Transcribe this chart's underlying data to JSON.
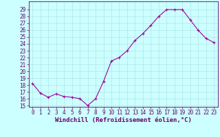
{
  "x": [
    0,
    1,
    2,
    3,
    4,
    5,
    6,
    7,
    8,
    9,
    10,
    11,
    12,
    13,
    14,
    15,
    16,
    17,
    18,
    19,
    20,
    21,
    22,
    23
  ],
  "y": [
    18.2,
    16.8,
    16.2,
    16.7,
    16.3,
    16.2,
    16.0,
    15.0,
    16.0,
    18.5,
    21.5,
    22.0,
    23.0,
    24.5,
    25.5,
    26.7,
    28.0,
    29.0,
    29.0,
    29.0,
    27.5,
    26.0,
    24.8,
    24.2
  ],
  "xlabel": "Windchill (Refroidissement éolien,°C)",
  "line_color": "#990099",
  "marker": "+",
  "marker_color": "#990099",
  "bg_color": "#ccffff",
  "grid_color": "#aadddd",
  "spine_color": "#660066",
  "tick_label_color": "#660066",
  "xlabel_color": "#660066",
  "ylim_min": 14.8,
  "ylim_max": 30.2,
  "xlim_min": -0.5,
  "xlim_max": 23.5,
  "yticks": [
    15,
    16,
    17,
    18,
    19,
    20,
    21,
    22,
    23,
    24,
    25,
    26,
    27,
    28,
    29
  ],
  "xticks": [
    0,
    1,
    2,
    3,
    4,
    5,
    6,
    7,
    8,
    9,
    10,
    11,
    12,
    13,
    14,
    15,
    16,
    17,
    18,
    19,
    20,
    21,
    22,
    23
  ],
  "tick_fontsize": 5.5,
  "xlabel_fontsize": 6.5
}
